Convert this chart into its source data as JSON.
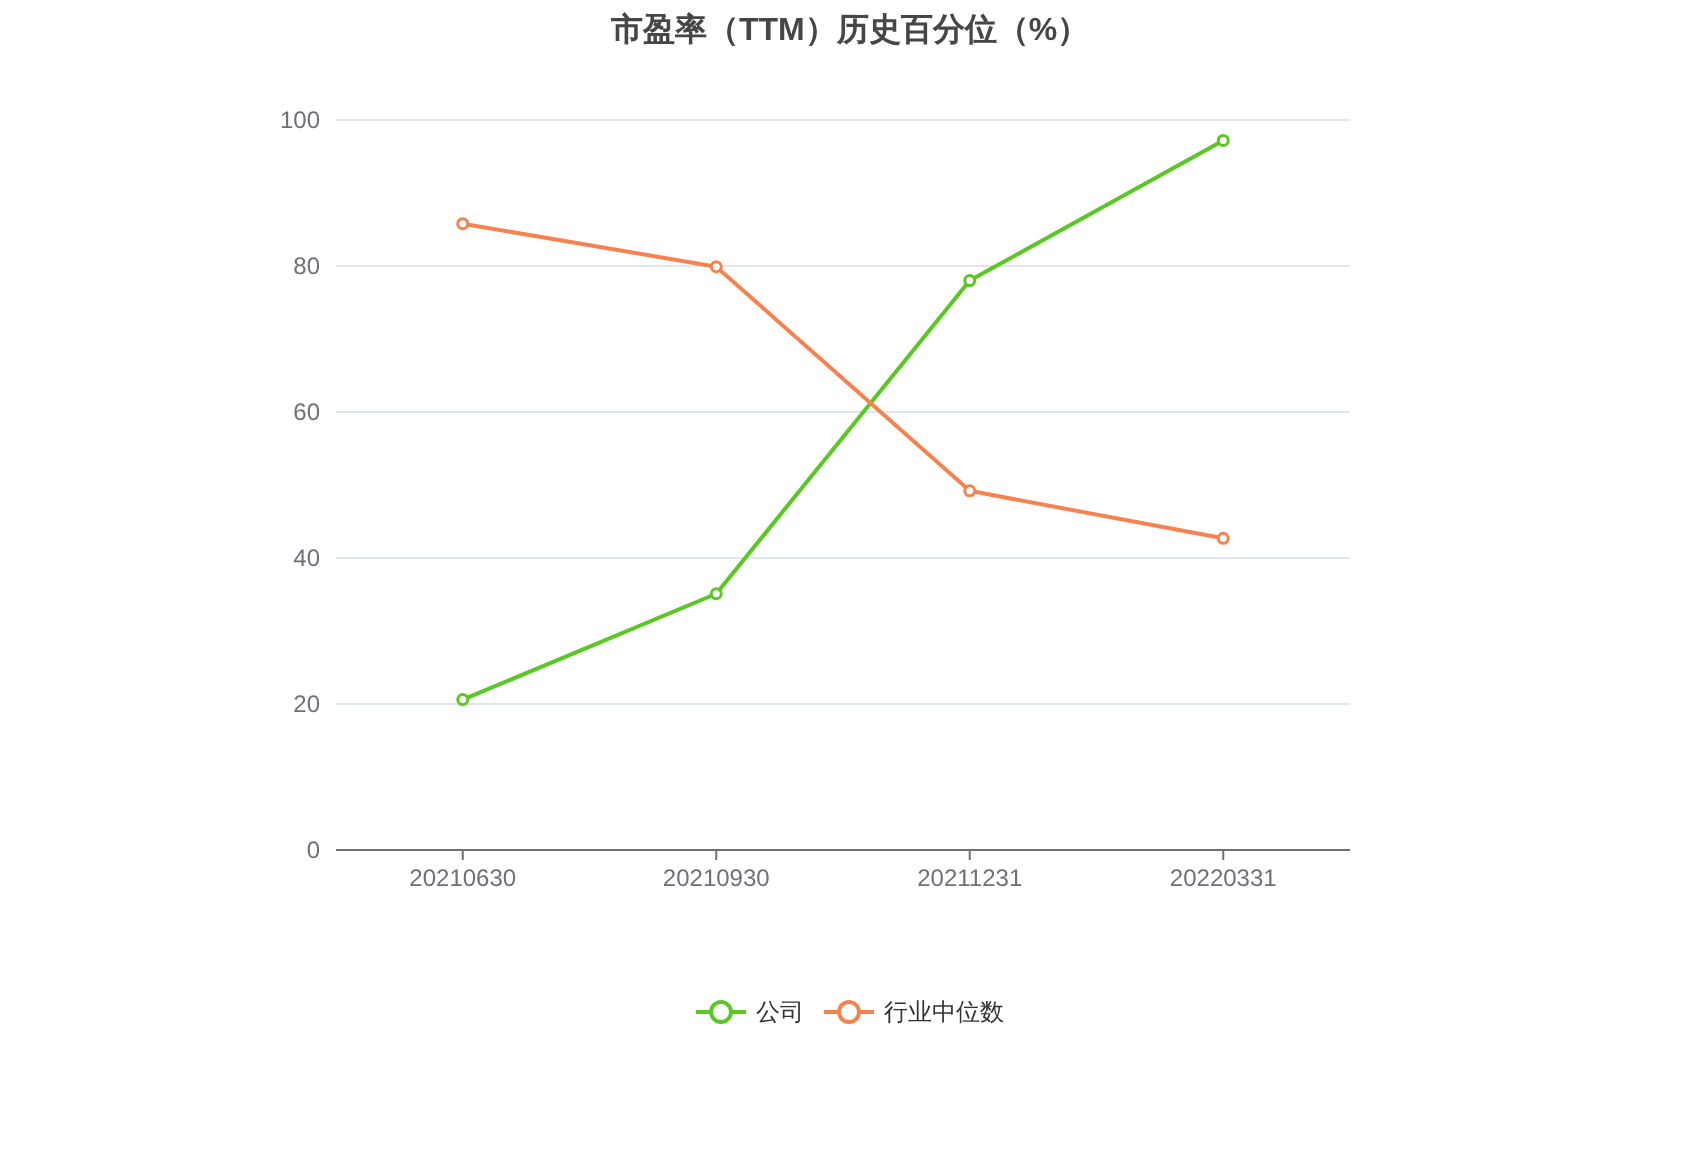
{
  "chart_data": {
    "type": "line",
    "title": "市盈率（TTM）历史百分位（%）",
    "categories": [
      "20210630",
      "20210930",
      "20211231",
      "20220331"
    ],
    "series": [
      {
        "name": "公司",
        "color": "#5ac723",
        "values": [
          20.6,
          35.1,
          78.0,
          97.2
        ]
      },
      {
        "name": "行业中位数",
        "color": "#f5834f",
        "values": [
          85.8,
          79.9,
          49.2,
          42.7
        ]
      }
    ],
    "ylim": [
      0,
      100
    ],
    "yticks": [
      0,
      20,
      40,
      60,
      80,
      100
    ],
    "grid": "y",
    "legend": "bottom",
    "marker": "circle"
  }
}
